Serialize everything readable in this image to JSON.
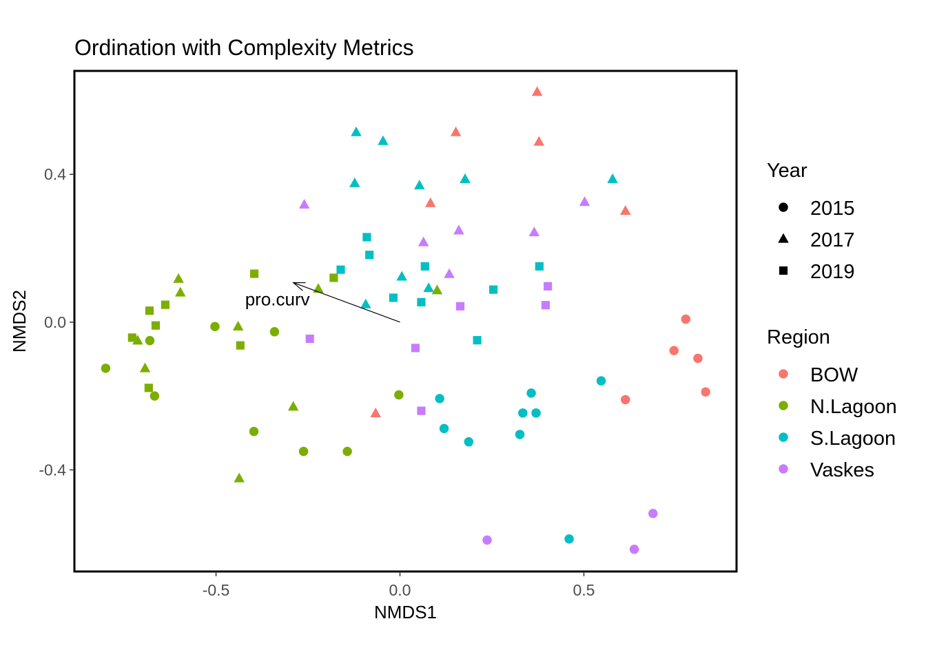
{
  "chart_data": {
    "type": "scatter",
    "title": "Ordination with Complexity Metrics",
    "xlabel": "NMDS1",
    "ylabel": "NMDS2",
    "xlim": [
      -0.885,
      0.915
    ],
    "ylim": [
      -0.675,
      0.68
    ],
    "x_ticks": [
      {
        "value": -0.5,
        "label": "-0.5"
      },
      {
        "value": 0.0,
        "label": "0.0"
      },
      {
        "value": 0.5,
        "label": "0.5"
      }
    ],
    "y_ticks": [
      {
        "value": 0.4,
        "label": "0.4"
      },
      {
        "value": 0.0,
        "label": "0.0"
      },
      {
        "value": -0.4,
        "label": "-0.4"
      }
    ],
    "grid": false,
    "legend_position": "right",
    "legends": {
      "year": {
        "title": "Year",
        "entries": [
          {
            "label": "2015",
            "shape": "circle"
          },
          {
            "label": "2017",
            "shape": "triangle"
          },
          {
            "label": "2019",
            "shape": "square"
          }
        ]
      },
      "region": {
        "title": "Region",
        "entries": [
          {
            "label": "BOW",
            "color": "#F8766D"
          },
          {
            "label": "N.Lagoon",
            "color": "#7CAE00"
          },
          {
            "label": "S.Lagoon",
            "color": "#00BFC4"
          },
          {
            "label": "Vaskes",
            "color": "#C77CFF"
          }
        ]
      }
    },
    "vector": {
      "label": "pro.curv",
      "from": [
        0.0,
        0.0
      ],
      "to": [
        -0.29,
        0.107
      ]
    },
    "points": [
      {
        "x": 0.777,
        "y": 0.008,
        "region": "BOW",
        "year": "2015"
      },
      {
        "x": 0.745,
        "y": -0.077,
        "region": "BOW",
        "year": "2015"
      },
      {
        "x": 0.81,
        "y": -0.098,
        "region": "BOW",
        "year": "2015"
      },
      {
        "x": 0.831,
        "y": -0.189,
        "region": "BOW",
        "year": "2015"
      },
      {
        "x": 0.613,
        "y": -0.21,
        "region": "BOW",
        "year": "2015"
      },
      {
        "x": 0.373,
        "y": 0.623,
        "region": "BOW",
        "year": "2017"
      },
      {
        "x": 0.152,
        "y": 0.514,
        "region": "BOW",
        "year": "2017"
      },
      {
        "x": 0.378,
        "y": 0.488,
        "region": "BOW",
        "year": "2017"
      },
      {
        "x": 0.083,
        "y": 0.322,
        "region": "BOW",
        "year": "2017"
      },
      {
        "x": 0.613,
        "y": 0.301,
        "region": "BOW",
        "year": "2017"
      },
      {
        "x": -0.066,
        "y": -0.247,
        "region": "BOW",
        "year": "2017"
      },
      {
        "x": -0.8,
        "y": -0.125,
        "region": "N.Lagoon",
        "year": "2015"
      },
      {
        "x": -0.68,
        "y": -0.05,
        "region": "N.Lagoon",
        "year": "2015"
      },
      {
        "x": -0.667,
        "y": -0.2,
        "region": "N.Lagoon",
        "year": "2015"
      },
      {
        "x": -0.503,
        "y": -0.012,
        "region": "N.Lagoon",
        "year": "2015"
      },
      {
        "x": -0.341,
        "y": -0.026,
        "region": "N.Lagoon",
        "year": "2015"
      },
      {
        "x": -0.003,
        "y": -0.197,
        "region": "N.Lagoon",
        "year": "2015"
      },
      {
        "x": -0.397,
        "y": -0.296,
        "region": "N.Lagoon",
        "year": "2015"
      },
      {
        "x": -0.262,
        "y": -0.35,
        "region": "N.Lagoon",
        "year": "2015"
      },
      {
        "x": -0.143,
        "y": -0.35,
        "region": "N.Lagoon",
        "year": "2015"
      },
      {
        "x": -0.602,
        "y": 0.117,
        "region": "N.Lagoon",
        "year": "2017"
      },
      {
        "x": -0.597,
        "y": 0.08,
        "region": "N.Lagoon",
        "year": "2017"
      },
      {
        "x": -0.222,
        "y": 0.09,
        "region": "N.Lagoon",
        "year": "2017"
      },
      {
        "x": 0.101,
        "y": 0.086,
        "region": "N.Lagoon",
        "year": "2017"
      },
      {
        "x": -0.713,
        "y": -0.05,
        "region": "N.Lagoon",
        "year": "2017"
      },
      {
        "x": -0.44,
        "y": -0.012,
        "region": "N.Lagoon",
        "year": "2017"
      },
      {
        "x": -0.693,
        "y": -0.125,
        "region": "N.Lagoon",
        "year": "2017"
      },
      {
        "x": -0.29,
        "y": -0.229,
        "region": "N.Lagoon",
        "year": "2017"
      },
      {
        "x": -0.437,
        "y": -0.423,
        "region": "N.Lagoon",
        "year": "2017"
      },
      {
        "x": -0.396,
        "y": 0.131,
        "region": "N.Lagoon",
        "year": "2019"
      },
      {
        "x": -0.18,
        "y": 0.12,
        "region": "N.Lagoon",
        "year": "2019"
      },
      {
        "x": -0.638,
        "y": 0.047,
        "region": "N.Lagoon",
        "year": "2019"
      },
      {
        "x": -0.681,
        "y": 0.031,
        "region": "N.Lagoon",
        "year": "2019"
      },
      {
        "x": -0.664,
        "y": -0.009,
        "region": "N.Lagoon",
        "year": "2019"
      },
      {
        "x": -0.728,
        "y": -0.042,
        "region": "N.Lagoon",
        "year": "2019"
      },
      {
        "x": -0.434,
        "y": -0.063,
        "region": "N.Lagoon",
        "year": "2019"
      },
      {
        "x": -0.683,
        "y": -0.178,
        "region": "N.Lagoon",
        "year": "2019"
      },
      {
        "x": 0.547,
        "y": -0.159,
        "region": "S.Lagoon",
        "year": "2015"
      },
      {
        "x": 0.357,
        "y": -0.192,
        "region": "S.Lagoon",
        "year": "2015"
      },
      {
        "x": 0.108,
        "y": -0.207,
        "region": "S.Lagoon",
        "year": "2015"
      },
      {
        "x": 0.334,
        "y": -0.246,
        "region": "S.Lagoon",
        "year": "2015"
      },
      {
        "x": 0.37,
        "y": -0.246,
        "region": "S.Lagoon",
        "year": "2015"
      },
      {
        "x": 0.12,
        "y": -0.288,
        "region": "S.Lagoon",
        "year": "2015"
      },
      {
        "x": 0.326,
        "y": -0.304,
        "region": "S.Lagoon",
        "year": "2015"
      },
      {
        "x": 0.187,
        "y": -0.324,
        "region": "S.Lagoon",
        "year": "2015"
      },
      {
        "x": 0.46,
        "y": -0.587,
        "region": "S.Lagoon",
        "year": "2015"
      },
      {
        "x": -0.119,
        "y": 0.514,
        "region": "S.Lagoon",
        "year": "2017"
      },
      {
        "x": -0.046,
        "y": 0.49,
        "region": "S.Lagoon",
        "year": "2017"
      },
      {
        "x": -0.123,
        "y": 0.376,
        "region": "S.Lagoon",
        "year": "2017"
      },
      {
        "x": 0.053,
        "y": 0.37,
        "region": "S.Lagoon",
        "year": "2017"
      },
      {
        "x": 0.177,
        "y": 0.387,
        "region": "S.Lagoon",
        "year": "2017"
      },
      {
        "x": 0.578,
        "y": 0.387,
        "region": "S.Lagoon",
        "year": "2017"
      },
      {
        "x": 0.005,
        "y": 0.123,
        "region": "S.Lagoon",
        "year": "2017"
      },
      {
        "x": 0.078,
        "y": 0.092,
        "region": "S.Lagoon",
        "year": "2017"
      },
      {
        "x": -0.093,
        "y": 0.048,
        "region": "S.Lagoon",
        "year": "2017"
      },
      {
        "x": -0.09,
        "y": 0.23,
        "region": "S.Lagoon",
        "year": "2019"
      },
      {
        "x": -0.083,
        "y": 0.182,
        "region": "S.Lagoon",
        "year": "2019"
      },
      {
        "x": -0.161,
        "y": 0.142,
        "region": "S.Lagoon",
        "year": "2019"
      },
      {
        "x": 0.068,
        "y": 0.151,
        "region": "S.Lagoon",
        "year": "2019"
      },
      {
        "x": 0.379,
        "y": 0.151,
        "region": "S.Lagoon",
        "year": "2019"
      },
      {
        "x": 0.254,
        "y": 0.088,
        "region": "S.Lagoon",
        "year": "2019"
      },
      {
        "x": -0.018,
        "y": 0.066,
        "region": "S.Lagoon",
        "year": "2019"
      },
      {
        "x": 0.058,
        "y": 0.054,
        "region": "S.Lagoon",
        "year": "2019"
      },
      {
        "x": 0.21,
        "y": -0.049,
        "region": "S.Lagoon",
        "year": "2019"
      },
      {
        "x": 0.688,
        "y": -0.518,
        "region": "Vaskes",
        "year": "2015"
      },
      {
        "x": 0.237,
        "y": -0.59,
        "region": "Vaskes",
        "year": "2015"
      },
      {
        "x": 0.637,
        "y": -0.615,
        "region": "Vaskes",
        "year": "2015"
      },
      {
        "x": -0.26,
        "y": 0.318,
        "region": "Vaskes",
        "year": "2017"
      },
      {
        "x": 0.502,
        "y": 0.325,
        "region": "Vaskes",
        "year": "2017"
      },
      {
        "x": 0.16,
        "y": 0.248,
        "region": "Vaskes",
        "year": "2017"
      },
      {
        "x": 0.365,
        "y": 0.243,
        "region": "Vaskes",
        "year": "2017"
      },
      {
        "x": 0.064,
        "y": 0.216,
        "region": "Vaskes",
        "year": "2017"
      },
      {
        "x": 0.134,
        "y": 0.13,
        "region": "Vaskes",
        "year": "2017"
      },
      {
        "x": 0.402,
        "y": 0.097,
        "region": "Vaskes",
        "year": "2019"
      },
      {
        "x": 0.164,
        "y": 0.043,
        "region": "Vaskes",
        "year": "2019"
      },
      {
        "x": 0.396,
        "y": 0.046,
        "region": "Vaskes",
        "year": "2019"
      },
      {
        "x": -0.245,
        "y": -0.045,
        "region": "Vaskes",
        "year": "2019"
      },
      {
        "x": 0.042,
        "y": -0.07,
        "region": "Vaskes",
        "year": "2019"
      },
      {
        "x": 0.058,
        "y": -0.24,
        "region": "Vaskes",
        "year": "2019"
      }
    ]
  }
}
